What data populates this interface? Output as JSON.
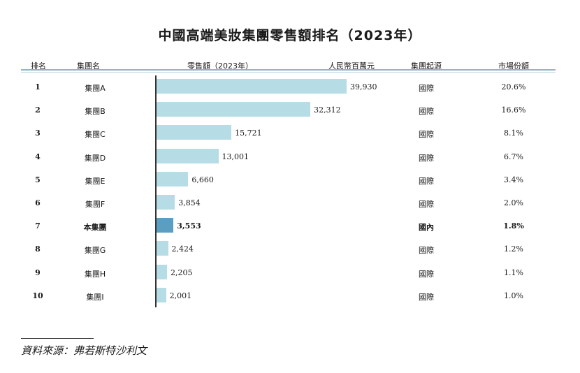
{
  "title": "中國高端美妝集團零售額排名（2023年）",
  "headers": {
    "rank": "排名",
    "group": "集團名",
    "sales": "零售額（2023年）",
    "unit": "人民幣百萬元",
    "origin": "集團起源",
    "share": "市場份額"
  },
  "colors": {
    "bar": "#b6dce6",
    "highlight": "#5a9fc2",
    "header_line": "#8fb7c4"
  },
  "chart_data": {
    "type": "bar",
    "orientation": "horizontal",
    "title": "中國高端美妝集團零售額排名（2023年）",
    "unit": "人民幣百萬元",
    "categories": [
      "集團A",
      "集團B",
      "集團C",
      "集團D",
      "集團E",
      "集團F",
      "本集團",
      "集團G",
      "集團H",
      "集團I"
    ],
    "values": [
      39930,
      32312,
      15721,
      13001,
      6660,
      3854,
      3553,
      2424,
      2205,
      2001
    ],
    "xlim": [
      0,
      40000
    ]
  },
  "rows": [
    {
      "rank": "1",
      "name": "集團A",
      "value": "39,930",
      "origin": "國際",
      "share": "20.6%",
      "highlight": false
    },
    {
      "rank": "2",
      "name": "集團B",
      "value": "32,312",
      "origin": "國際",
      "share": "16.6%",
      "highlight": false
    },
    {
      "rank": "3",
      "name": "集團C",
      "value": "15,721",
      "origin": "國際",
      "share": "8.1%",
      "highlight": false
    },
    {
      "rank": "4",
      "name": "集團D",
      "value": "13,001",
      "origin": "國際",
      "share": "6.7%",
      "highlight": false
    },
    {
      "rank": "5",
      "name": "集團E",
      "value": "6,660",
      "origin": "國際",
      "share": "3.4%",
      "highlight": false
    },
    {
      "rank": "6",
      "name": "集團F",
      "value": "3,854",
      "origin": "國際",
      "share": "2.0%",
      "highlight": false
    },
    {
      "rank": "7",
      "name": "本集團",
      "value": "3,553",
      "origin": "國內",
      "share": "1.8%",
      "highlight": true
    },
    {
      "rank": "8",
      "name": "集團G",
      "value": "2,424",
      "origin": "國際",
      "share": "1.2%",
      "highlight": false
    },
    {
      "rank": "9",
      "name": "集團H",
      "value": "2,205",
      "origin": "國際",
      "share": "1.1%",
      "highlight": false
    },
    {
      "rank": "10",
      "name": "集團I",
      "value": "2,001",
      "origin": "國際",
      "share": "1.0%",
      "highlight": false
    }
  ],
  "source": "資料來源：弗若斯特沙利文"
}
